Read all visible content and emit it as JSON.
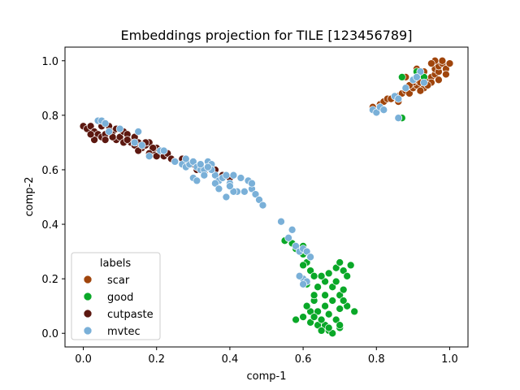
{
  "chart_data": {
    "type": "scatter",
    "title": "Embeddings projection for TILE [123456789]",
    "xlabel": "comp-1",
    "ylabel": "comp-2",
    "xlim": [
      -0.05,
      1.05
    ],
    "ylim": [
      -0.05,
      1.05
    ],
    "xticks": [
      "0.0",
      "0.2",
      "0.4",
      "0.6",
      "0.8",
      "1.0"
    ],
    "yticks": [
      "0.0",
      "0.2",
      "0.4",
      "0.6",
      "0.8",
      "1.0"
    ],
    "grid": false,
    "legend": {
      "title": "labels",
      "placement": "lower-left"
    },
    "series": [
      {
        "name": "scar",
        "color": "#a0450c",
        "points": [
          [
            0.79,
            0.83
          ],
          [
            0.81,
            0.84
          ],
          [
            0.82,
            0.85
          ],
          [
            0.83,
            0.86
          ],
          [
            0.84,
            0.86
          ],
          [
            0.86,
            0.87
          ],
          [
            0.87,
            0.88
          ],
          [
            0.88,
            0.89
          ],
          [
            0.89,
            0.88
          ],
          [
            0.9,
            0.9
          ],
          [
            0.91,
            0.91
          ],
          [
            0.9,
            0.92
          ],
          [
            0.91,
            0.93
          ],
          [
            0.92,
            0.92
          ],
          [
            0.93,
            0.9
          ],
          [
            0.94,
            0.93
          ],
          [
            0.95,
            0.94
          ],
          [
            0.95,
            0.92
          ],
          [
            0.96,
            0.95
          ],
          [
            0.96,
            0.97
          ],
          [
            0.97,
            0.96
          ],
          [
            0.97,
            0.98
          ],
          [
            0.98,
            0.99
          ],
          [
            0.99,
            0.97
          ],
          [
            0.98,
            1.0
          ],
          [
            0.96,
            1.0
          ],
          [
            1.0,
            0.99
          ],
          [
            0.91,
            0.97
          ],
          [
            0.93,
            0.96
          ],
          [
            0.89,
            0.91
          ],
          [
            0.92,
            0.89
          ],
          [
            0.94,
            0.91
          ],
          [
            0.97,
            0.93
          ],
          [
            0.88,
            0.94
          ],
          [
            0.87,
            0.79
          ],
          [
            0.99,
            0.95
          ],
          [
            0.95,
            0.99
          ],
          [
            0.92,
            0.95
          ],
          [
            0.86,
            0.85
          ]
        ]
      },
      {
        "name": "good",
        "color": "#0aa828",
        "points": [
          [
            0.87,
            0.79
          ],
          [
            0.87,
            0.94
          ],
          [
            0.93,
            0.94
          ],
          [
            0.91,
            0.96
          ],
          [
            0.55,
            0.34
          ],
          [
            0.57,
            0.33
          ],
          [
            0.58,
            0.31
          ],
          [
            0.6,
            0.29
          ],
          [
            0.61,
            0.26
          ],
          [
            0.6,
            0.25
          ],
          [
            0.62,
            0.23
          ],
          [
            0.59,
            0.21
          ],
          [
            0.63,
            0.21
          ],
          [
            0.61,
            0.18
          ],
          [
            0.64,
            0.17
          ],
          [
            0.63,
            0.12
          ],
          [
            0.62,
            0.08
          ],
          [
            0.6,
            0.06
          ],
          [
            0.62,
            0.04
          ],
          [
            0.64,
            0.03
          ],
          [
            0.66,
            0.03
          ],
          [
            0.67,
            0.01
          ],
          [
            0.68,
            0.0
          ],
          [
            0.7,
            0.02
          ],
          [
            0.69,
            0.05
          ],
          [
            0.67,
            0.07
          ],
          [
            0.66,
            0.1
          ],
          [
            0.68,
            0.12
          ],
          [
            0.7,
            0.14
          ],
          [
            0.71,
            0.16
          ],
          [
            0.72,
            0.1
          ],
          [
            0.74,
            0.08
          ],
          [
            0.7,
            0.09
          ],
          [
            0.68,
            0.17
          ],
          [
            0.66,
            0.19
          ],
          [
            0.67,
            0.22
          ],
          [
            0.69,
            0.24
          ],
          [
            0.7,
            0.26
          ],
          [
            0.71,
            0.23
          ],
          [
            0.72,
            0.21
          ],
          [
            0.73,
            0.25
          ],
          [
            0.65,
            0.21
          ],
          [
            0.63,
            0.14
          ],
          [
            0.61,
            0.1
          ],
          [
            0.65,
            0.05
          ],
          [
            0.67,
            0.02
          ],
          [
            0.64,
            0.08
          ],
          [
            0.66,
            0.14
          ],
          [
            0.69,
            0.19
          ],
          [
            0.71,
            0.12
          ],
          [
            0.58,
            0.05
          ],
          [
            0.6,
            0.32
          ],
          [
            0.62,
            0.28
          ],
          [
            0.65,
            0.01
          ],
          [
            0.7,
            0.03
          ],
          [
            0.63,
            0.06
          ]
        ]
      },
      {
        "name": "cutpaste",
        "color": "#5c1810",
        "points": [
          [
            0.0,
            0.76
          ],
          [
            0.01,
            0.75
          ],
          [
            0.02,
            0.76
          ],
          [
            0.03,
            0.74
          ],
          [
            0.04,
            0.73
          ],
          [
            0.03,
            0.71
          ],
          [
            0.05,
            0.72
          ],
          [
            0.06,
            0.73
          ],
          [
            0.07,
            0.76
          ],
          [
            0.08,
            0.74
          ],
          [
            0.09,
            0.71
          ],
          [
            0.1,
            0.72
          ],
          [
            0.11,
            0.74
          ],
          [
            0.12,
            0.73
          ],
          [
            0.13,
            0.7
          ],
          [
            0.14,
            0.69
          ],
          [
            0.15,
            0.7
          ],
          [
            0.16,
            0.68
          ],
          [
            0.17,
            0.69
          ],
          [
            0.18,
            0.7
          ],
          [
            0.19,
            0.67
          ],
          [
            0.2,
            0.68
          ],
          [
            0.21,
            0.66
          ],
          [
            0.22,
            0.65
          ],
          [
            0.23,
            0.66
          ],
          [
            0.24,
            0.64
          ],
          [
            0.25,
            0.63
          ],
          [
            0.27,
            0.64
          ],
          [
            0.28,
            0.63
          ],
          [
            0.3,
            0.62
          ],
          [
            0.31,
            0.6
          ],
          [
            0.33,
            0.59
          ],
          [
            0.36,
            0.6
          ],
          [
            0.38,
            0.58
          ],
          [
            0.4,
            0.57
          ],
          [
            0.14,
            0.72
          ],
          [
            0.17,
            0.7
          ],
          [
            0.19,
            0.68
          ],
          [
            0.06,
            0.71
          ],
          [
            0.09,
            0.75
          ],
          [
            0.11,
            0.7
          ],
          [
            0.02,
            0.73
          ],
          [
            0.15,
            0.67
          ],
          [
            0.12,
            0.71
          ],
          [
            0.18,
            0.66
          ],
          [
            0.2,
            0.65
          ],
          [
            0.05,
            0.76
          ],
          [
            0.08,
            0.72
          ]
        ]
      },
      {
        "name": "mvtec",
        "color": "#7ab0d8",
        "points": [
          [
            0.04,
            0.78
          ],
          [
            0.05,
            0.78
          ],
          [
            0.06,
            0.77
          ],
          [
            0.07,
            0.74
          ],
          [
            0.1,
            0.75
          ],
          [
            0.15,
            0.74
          ],
          [
            0.14,
            0.7
          ],
          [
            0.16,
            0.69
          ],
          [
            0.18,
            0.65
          ],
          [
            0.21,
            0.67
          ],
          [
            0.22,
            0.67
          ],
          [
            0.25,
            0.63
          ],
          [
            0.27,
            0.62
          ],
          [
            0.28,
            0.61
          ],
          [
            0.29,
            0.62
          ],
          [
            0.3,
            0.63
          ],
          [
            0.31,
            0.61
          ],
          [
            0.32,
            0.6
          ],
          [
            0.33,
            0.6
          ],
          [
            0.34,
            0.63
          ],
          [
            0.35,
            0.62
          ],
          [
            0.36,
            0.58
          ],
          [
            0.37,
            0.56
          ],
          [
            0.38,
            0.57
          ],
          [
            0.39,
            0.58
          ],
          [
            0.4,
            0.55
          ],
          [
            0.41,
            0.58
          ],
          [
            0.42,
            0.52
          ],
          [
            0.43,
            0.57
          ],
          [
            0.44,
            0.52
          ],
          [
            0.45,
            0.56
          ],
          [
            0.46,
            0.53
          ],
          [
            0.47,
            0.51
          ],
          [
            0.48,
            0.49
          ],
          [
            0.49,
            0.47
          ],
          [
            0.3,
            0.57
          ],
          [
            0.31,
            0.56
          ],
          [
            0.33,
            0.58
          ],
          [
            0.35,
            0.6
          ],
          [
            0.36,
            0.55
          ],
          [
            0.37,
            0.53
          ],
          [
            0.39,
            0.5
          ],
          [
            0.41,
            0.52
          ],
          [
            0.54,
            0.41
          ],
          [
            0.56,
            0.35
          ],
          [
            0.57,
            0.38
          ],
          [
            0.58,
            0.32
          ],
          [
            0.59,
            0.3
          ],
          [
            0.6,
            0.31
          ],
          [
            0.61,
            0.3
          ],
          [
            0.62,
            0.28
          ],
          [
            0.6,
            0.2
          ],
          [
            0.59,
            0.21
          ],
          [
            0.61,
            0.19
          ],
          [
            0.6,
            0.18
          ],
          [
            0.79,
            0.82
          ],
          [
            0.8,
            0.81
          ],
          [
            0.81,
            0.83
          ],
          [
            0.82,
            0.82
          ],
          [
            0.85,
            0.87
          ],
          [
            0.86,
            0.86
          ],
          [
            0.86,
            0.79
          ],
          [
            0.88,
            0.9
          ],
          [
            0.9,
            0.93
          ],
          [
            0.92,
            0.96
          ],
          [
            0.93,
            0.92
          ],
          [
            0.91,
            0.94
          ],
          [
            0.34,
            0.61
          ],
          [
            0.28,
            0.64
          ],
          [
            0.4,
            0.54
          ],
          [
            0.46,
            0.55
          ],
          [
            0.32,
            0.62
          ]
        ]
      }
    ]
  }
}
